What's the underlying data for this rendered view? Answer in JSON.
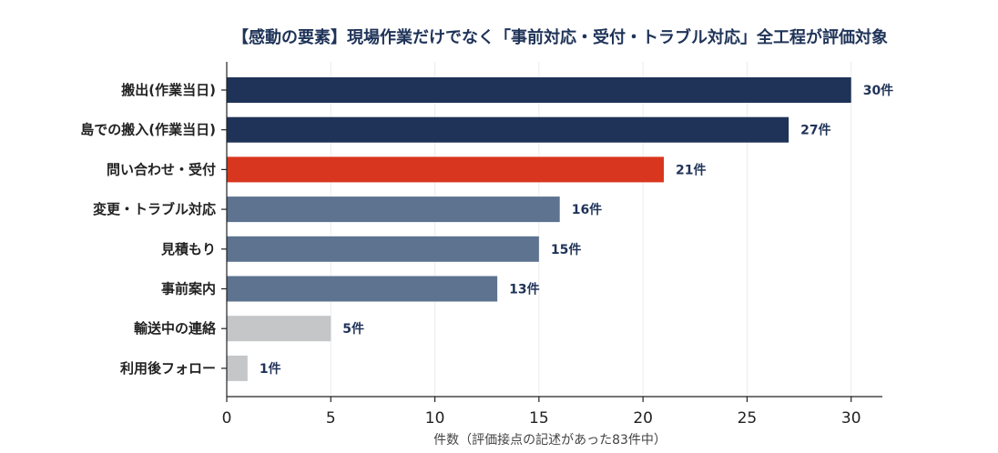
{
  "chart_data": {
    "type": "bar",
    "orientation": "horizontal",
    "title": "【感動の要素】現場作業だけでなく「事前対応・受付・トラブル対応」全工程が評価対象",
    "xlabel": "件数（評価接点の記述があった83件中）",
    "ylabel": "",
    "xlim": [
      0,
      31.5
    ],
    "xticks": [
      0,
      5,
      10,
      15,
      20,
      25,
      30
    ],
    "categories": [
      "搬出(作業当日)",
      "島での搬入(作業当日)",
      "問い合わせ・受付",
      "変更・トラブル対応",
      "見積もり",
      "事前案内",
      "輸送中の連絡",
      "利用後フォロー"
    ],
    "values": [
      30,
      27,
      21,
      16,
      15,
      13,
      5,
      1
    ],
    "value_labels": [
      "30件",
      "27件",
      "21件",
      "16件",
      "15件",
      "13件",
      "5件",
      "1件"
    ],
    "bar_colors": [
      "#1f3358",
      "#1f3358",
      "#d9361f",
      "#5d7390",
      "#5d7390",
      "#5d7390",
      "#c4c6c8",
      "#c4c6c8"
    ],
    "grid": true,
    "legend": "none"
  }
}
